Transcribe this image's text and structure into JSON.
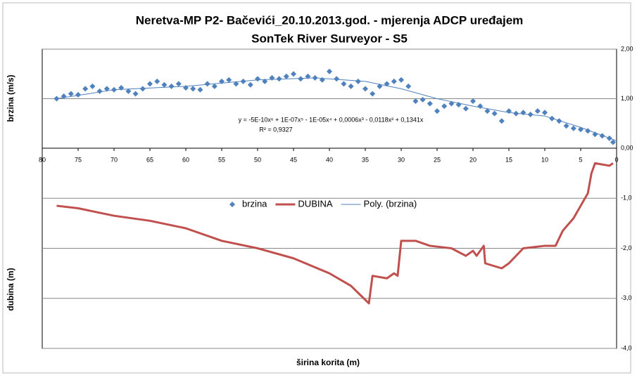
{
  "chart_data": [
    {
      "type": "scatter",
      "title": [
        "Neretva-MP P2- Bačevići_20.10.2013.god. - mjerenja ADCP uređajem",
        "SonTek River Surveyor - S5"
      ],
      "ylabel": "brzina (m/s)",
      "xlim": [
        80,
        0
      ],
      "xticks": [
        80,
        75,
        70,
        65,
        60,
        55,
        50,
        45,
        40,
        35,
        30,
        25,
        20,
        15,
        10,
        5,
        0
      ],
      "ylim": [
        0,
        2
      ],
      "yticks": [
        {
          "value": 0,
          "label": "0,00"
        },
        {
          "value": 1,
          "label": "1,00"
        },
        {
          "value": 2,
          "label": "2,00"
        }
      ],
      "grid": true,
      "annotations": [
        "y = -5E-10x⁶ + 1E-07x⁵ - 1E-05x⁴ + 0,0006x³ - 0,0118x² + 0,1341x",
        "R² = 0,9327"
      ],
      "series": [
        {
          "name": "brzina",
          "color": "#4f81bd",
          "marker": "diamond",
          "x": [
            78,
            77,
            76,
            75,
            74,
            73,
            72,
            71,
            70,
            69,
            68,
            67,
            66,
            65,
            64,
            63,
            62,
            61,
            60,
            59,
            58,
            57,
            56,
            55,
            54,
            53,
            52,
            51,
            50,
            49,
            48,
            47,
            46,
            45,
            44,
            43,
            42,
            41,
            40,
            39,
            38,
            37,
            36,
            35,
            34,
            33,
            32,
            31,
            30,
            29,
            28,
            27,
            26,
            25,
            24,
            23,
            22,
            21,
            20,
            19,
            18,
            17,
            16,
            15,
            14,
            13,
            12,
            11,
            10,
            9,
            8,
            7,
            6,
            5,
            4,
            3,
            2,
            1,
            0.5
          ],
          "values": [
            1.0,
            1.05,
            1.1,
            1.08,
            1.2,
            1.25,
            1.15,
            1.2,
            1.18,
            1.22,
            1.15,
            1.1,
            1.2,
            1.3,
            1.35,
            1.28,
            1.25,
            1.3,
            1.22,
            1.2,
            1.18,
            1.3,
            1.25,
            1.35,
            1.38,
            1.3,
            1.35,
            1.28,
            1.4,
            1.35,
            1.42,
            1.4,
            1.45,
            1.5,
            1.4,
            1.45,
            1.42,
            1.38,
            1.55,
            1.4,
            1.3,
            1.25,
            1.35,
            1.2,
            1.1,
            1.25,
            1.3,
            1.35,
            1.38,
            1.25,
            0.95,
            0.98,
            0.9,
            0.75,
            0.85,
            0.9,
            0.88,
            0.8,
            0.95,
            0.85,
            0.75,
            0.7,
            0.55,
            0.75,
            0.7,
            0.72,
            0.68,
            0.75,
            0.72,
            0.6,
            0.55,
            0.45,
            0.4,
            0.38,
            0.35,
            0.28,
            0.25,
            0.2,
            0.12
          ]
        },
        {
          "name": "Poly. (brzina)",
          "color": "#4f81bd",
          "marker": "line",
          "x": [
            78,
            70,
            60,
            50,
            42,
            35,
            30,
            25,
            20,
            15,
            10,
            5,
            0
          ],
          "values": [
            1.0,
            1.18,
            1.25,
            1.38,
            1.42,
            1.35,
            1.2,
            1.0,
            0.85,
            0.72,
            0.65,
            0.42,
            0.15
          ]
        }
      ]
    },
    {
      "type": "line",
      "ylabel": "dubina (m)",
      "xlabel": "širina korita (m)",
      "xlim": [
        80,
        0
      ],
      "ylim": [
        -4,
        0
      ],
      "yticks": [
        {
          "value": -1,
          "label": "-1,0"
        },
        {
          "value": -2,
          "label": "-2,0"
        },
        {
          "value": -3,
          "label": "-3,0"
        },
        {
          "value": -4,
          "label": "-4,0"
        }
      ],
      "grid": true,
      "series": [
        {
          "name": "DUBINA",
          "color": "#c0504d",
          "x": [
            78,
            75,
            70,
            65,
            60,
            55,
            50,
            45,
            40,
            37,
            34.5,
            34,
            32,
            31,
            30.5,
            30,
            28,
            26,
            23,
            21,
            20,
            19.5,
            18.5,
            18.3,
            16,
            15,
            13,
            10,
            8.5,
            7.5,
            6,
            5,
            4,
            3.5,
            3,
            1,
            0.5
          ],
          "values": [
            -1.15,
            -1.2,
            -1.35,
            -1.45,
            -1.6,
            -1.85,
            -2.0,
            -2.2,
            -2.5,
            -2.75,
            -3.1,
            -2.55,
            -2.6,
            -2.5,
            -2.55,
            -1.85,
            -1.85,
            -1.95,
            -2.0,
            -2.15,
            -2.05,
            -2.15,
            -1.95,
            -2.3,
            -2.4,
            -2.3,
            -2.0,
            -1.95,
            -1.95,
            -1.65,
            -1.4,
            -1.15,
            -0.9,
            -0.5,
            -0.3,
            -0.35,
            -0.3
          ]
        }
      ]
    }
  ]
}
